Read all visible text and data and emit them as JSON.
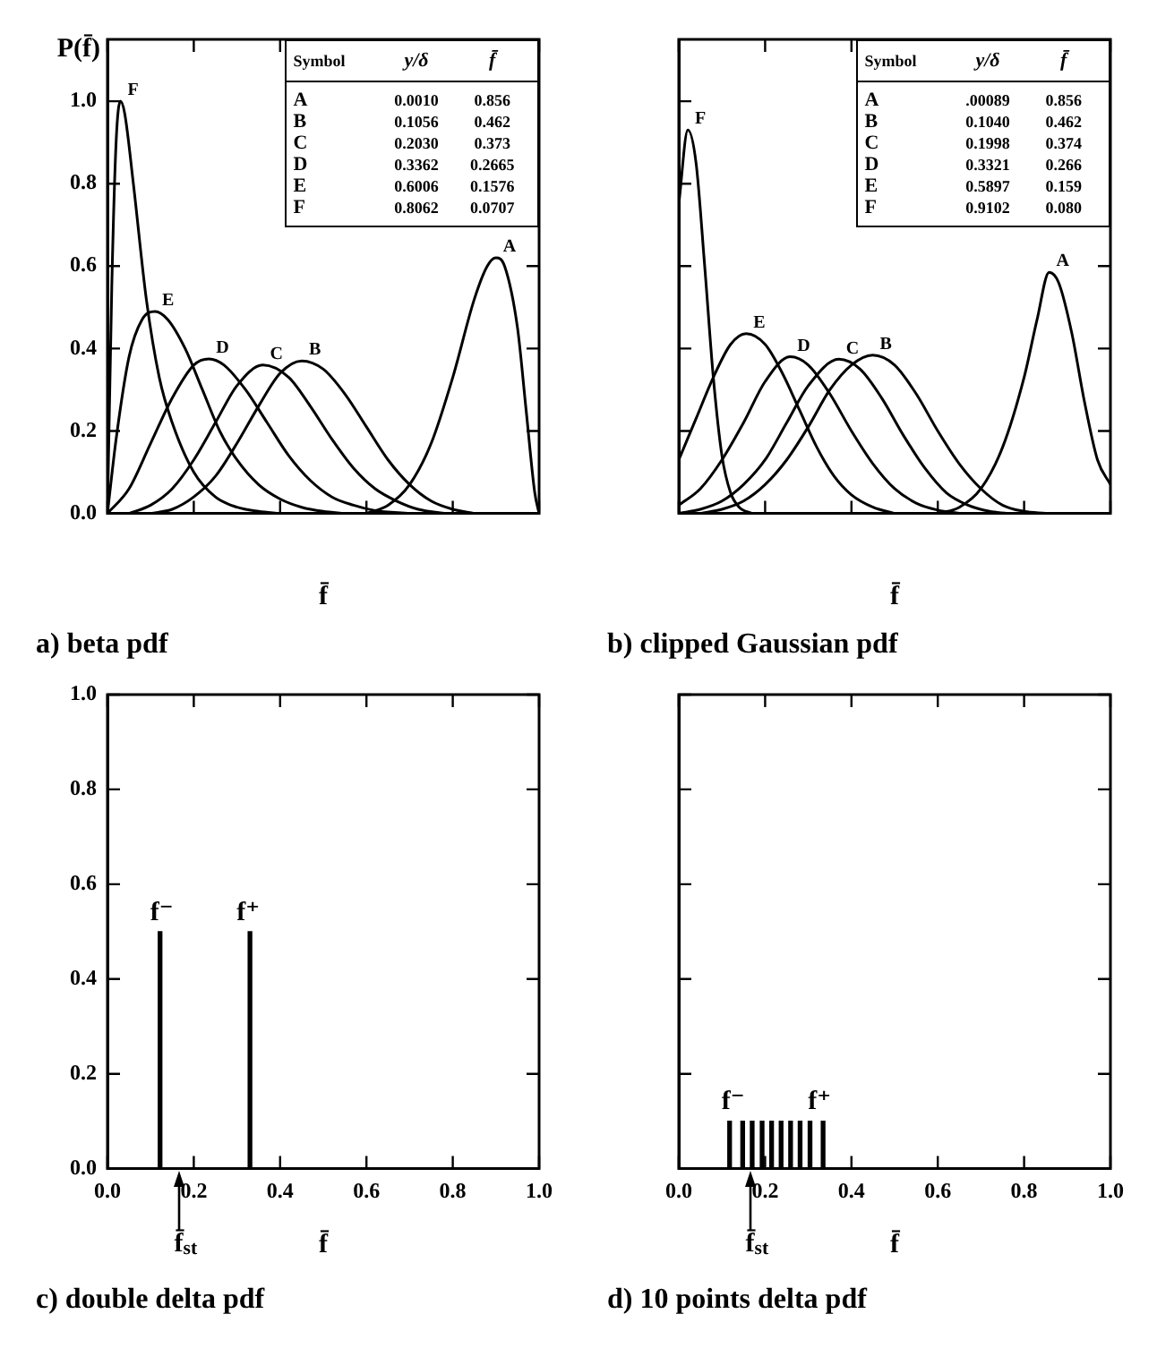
{
  "chart_data": [
    {
      "type": "line",
      "title": "a) beta pdf",
      "xlabel": "f̄",
      "ylabel": "P(f̄)",
      "xlim": [
        0,
        1
      ],
      "ylim": [
        0,
        1.15
      ],
      "tick_labels": "y",
      "xticks": [
        {
          "value": 0,
          "label": null
        },
        {
          "value": 0.2,
          "label": null
        },
        {
          "value": 0.4,
          "label": null
        },
        {
          "value": 0.6,
          "label": null
        },
        {
          "value": 0.8,
          "label": null
        },
        {
          "value": 1,
          "label": null
        }
      ],
      "yticks": [
        {
          "value": 0,
          "label": "0.0"
        },
        {
          "value": 0.2,
          "label": "0.2"
        },
        {
          "value": 0.4,
          "label": "0.4"
        },
        {
          "value": 0.6,
          "label": "0.6"
        },
        {
          "value": 0.8,
          "label": "0.8"
        },
        {
          "value": 1,
          "label": "1.0"
        }
      ],
      "annotations": [
        "Symbol",
        "y/δ",
        "f̄",
        "A",
        "0.0010",
        "0.856",
        "B",
        "0.1056",
        "0.462",
        "C",
        "0.2030",
        "0.373",
        "D",
        "0.3362",
        "0.2665",
        "E",
        "0.6006",
        "0.1576",
        "F",
        "0.8062",
        "0.0707"
      ],
      "series": [
        {
          "name": "A",
          "color": "#000000",
          "x": [
            0.6,
            0.65,
            0.7,
            0.75,
            0.8,
            0.85,
            0.88,
            0.9,
            0.92,
            0.95,
            0.97,
            0.99,
            1.0
          ],
          "values": [
            0,
            0.02,
            0.07,
            0.17,
            0.33,
            0.52,
            0.6,
            0.62,
            0.6,
            0.45,
            0.25,
            0.05,
            0
          ]
        },
        {
          "name": "B",
          "color": "#000000",
          "x": [
            0.1,
            0.15,
            0.2,
            0.25,
            0.3,
            0.35,
            0.4,
            0.45,
            0.5,
            0.55,
            0.6,
            0.65,
            0.7,
            0.75,
            0.8,
            0.85
          ],
          "values": [
            0,
            0.01,
            0.04,
            0.09,
            0.17,
            0.26,
            0.34,
            0.37,
            0.35,
            0.29,
            0.21,
            0.13,
            0.07,
            0.03,
            0.01,
            0
          ]
        },
        {
          "name": "C",
          "color": "#000000",
          "x": [
            0.05,
            0.1,
            0.15,
            0.2,
            0.25,
            0.3,
            0.36,
            0.42,
            0.47,
            0.52,
            0.57,
            0.62,
            0.67,
            0.72,
            0.78
          ],
          "values": [
            0,
            0.02,
            0.06,
            0.13,
            0.22,
            0.31,
            0.36,
            0.33,
            0.26,
            0.18,
            0.11,
            0.06,
            0.03,
            0.01,
            0
          ]
        },
        {
          "name": "D",
          "color": "#000000",
          "x": [
            0,
            0.05,
            0.1,
            0.15,
            0.2,
            0.235,
            0.27,
            0.32,
            0.37,
            0.42,
            0.47,
            0.52,
            0.57,
            0.62,
            0.7
          ],
          "values": [
            0,
            0.06,
            0.17,
            0.28,
            0.36,
            0.375,
            0.36,
            0.3,
            0.22,
            0.14,
            0.08,
            0.04,
            0.02,
            0.007,
            0
          ]
        },
        {
          "name": "E",
          "color": "#000000",
          "x": [
            0,
            0.02,
            0.05,
            0.08,
            0.11,
            0.14,
            0.18,
            0.22,
            0.26,
            0.3,
            0.35,
            0.4,
            0.45,
            0.5,
            0.55
          ],
          "values": [
            0,
            0.18,
            0.38,
            0.47,
            0.49,
            0.47,
            0.4,
            0.3,
            0.2,
            0.13,
            0.07,
            0.035,
            0.015,
            0.005,
            0
          ]
        },
        {
          "name": "F",
          "color": "#000000",
          "x": [
            0,
            0.01,
            0.02,
            0.03,
            0.04,
            0.06,
            0.09,
            0.12,
            0.15,
            0.2,
            0.25,
            0.3,
            0.35,
            0.4
          ],
          "values": [
            0,
            0.55,
            0.9,
            1.0,
            0.97,
            0.8,
            0.52,
            0.33,
            0.22,
            0.1,
            0.04,
            0.015,
            0.005,
            0
          ]
        }
      ]
    },
    {
      "type": "line",
      "title": "b) clipped Gaussian pdf",
      "xlabel": "f̄",
      "xlim": [
        0,
        1
      ],
      "ylim": [
        0,
        1.15
      ],
      "tick_labels": false,
      "xticks": [
        {
          "value": 0,
          "label": null
        },
        {
          "value": 0.2,
          "label": null
        },
        {
          "value": 0.4,
          "label": null
        },
        {
          "value": 0.6,
          "label": null
        },
        {
          "value": 0.8,
          "label": null
        },
        {
          "value": 1,
          "label": null
        }
      ],
      "yticks": [
        {
          "value": 0,
          "label": null
        },
        {
          "value": 0.2,
          "label": null
        },
        {
          "value": 0.4,
          "label": null
        },
        {
          "value": 0.6,
          "label": null
        },
        {
          "value": 0.8,
          "label": null
        },
        {
          "value": 1,
          "label": null
        }
      ],
      "annotations": [
        "Symbol",
        "y/δ",
        "f̄",
        "A",
        ".00089",
        "0.856",
        "B",
        "0.1040",
        "0.462",
        "C",
        "0.1998",
        "0.374",
        "D",
        "0.3321",
        "0.266",
        "E",
        "0.5897",
        "0.159",
        "F",
        "0.9102",
        "0.080"
      ],
      "series": [
        {
          "name": "A",
          "color": "#000000",
          "x": [
            0.6,
            0.65,
            0.7,
            0.75,
            0.8,
            0.83,
            0.858,
            0.88,
            0.91,
            0.94,
            0.97,
            1.0
          ],
          "values": [
            0,
            0.015,
            0.06,
            0.16,
            0.33,
            0.47,
            0.585,
            0.56,
            0.44,
            0.27,
            0.13,
            0.07
          ]
        },
        {
          "name": "B",
          "color": "#000000",
          "x": [
            0.05,
            0.1,
            0.15,
            0.2,
            0.25,
            0.3,
            0.35,
            0.4,
            0.449,
            0.5,
            0.55,
            0.6,
            0.65,
            0.7,
            0.75,
            0.8,
            0.85
          ],
          "values": [
            0,
            0.01,
            0.03,
            0.07,
            0.13,
            0.21,
            0.3,
            0.36,
            0.384,
            0.36,
            0.29,
            0.2,
            0.12,
            0.06,
            0.02,
            0.005,
            0
          ]
        },
        {
          "name": "C",
          "color": "#000000",
          "x": [
            0,
            0.05,
            0.1,
            0.15,
            0.2,
            0.25,
            0.3,
            0.371,
            0.42,
            0.47,
            0.52,
            0.57,
            0.62,
            0.67,
            0.72,
            0.76
          ],
          "values": [
            0,
            0.01,
            0.03,
            0.07,
            0.13,
            0.22,
            0.31,
            0.374,
            0.35,
            0.28,
            0.19,
            0.11,
            0.05,
            0.02,
            0.005,
            0
          ]
        },
        {
          "name": "D",
          "color": "#000000",
          "x": [
            0,
            0.05,
            0.1,
            0.15,
            0.2,
            0.258,
            0.3,
            0.35,
            0.4,
            0.45,
            0.5,
            0.55,
            0.6,
            0.65
          ],
          "values": [
            0.02,
            0.06,
            0.13,
            0.22,
            0.32,
            0.38,
            0.36,
            0.29,
            0.2,
            0.12,
            0.06,
            0.025,
            0.008,
            0
          ]
        },
        {
          "name": "E",
          "color": "#000000",
          "x": [
            0,
            0.04,
            0.08,
            0.12,
            0.156,
            0.2,
            0.24,
            0.28,
            0.32,
            0.36,
            0.4,
            0.45,
            0.5
          ],
          "values": [
            0.13,
            0.23,
            0.33,
            0.41,
            0.436,
            0.41,
            0.34,
            0.25,
            0.16,
            0.09,
            0.045,
            0.015,
            0
          ]
        },
        {
          "name": "F",
          "color": "#000000",
          "x": [
            0,
            0.021,
            0.04,
            0.06,
            0.08,
            0.1,
            0.12,
            0.14,
            0.17
          ],
          "values": [
            0.75,
            0.93,
            0.85,
            0.6,
            0.33,
            0.14,
            0.05,
            0.015,
            0
          ]
        }
      ]
    },
    {
      "type": "bar",
      "title": "c) double delta pdf",
      "xlabel": "f̄",
      "xlim": [
        0,
        1
      ],
      "ylim": [
        0,
        1
      ],
      "xticks": [
        {
          "value": 0,
          "label": "0.0"
        },
        {
          "value": 0.2,
          "label": "0.2"
        },
        {
          "value": 0.4,
          "label": "0.4"
        },
        {
          "value": 0.6,
          "label": "0.6"
        },
        {
          "value": 0.8,
          "label": "0.8"
        },
        {
          "value": 1,
          "label": "1.0"
        }
      ],
      "yticks": [
        {
          "value": 0,
          "label": "0.0"
        },
        {
          "value": 0.2,
          "label": "0.2"
        },
        {
          "value": 0.4,
          "label": "0.4"
        },
        {
          "value": 0.6,
          "label": "0.6"
        },
        {
          "value": 0.8,
          "label": "0.8"
        },
        {
          "value": 1,
          "label": "1.0"
        }
      ],
      "ref_lines": [
        {
          "axis": "x",
          "value": 0.167,
          "label": "f̄$_{st}$"
        }
      ],
      "series": [
        {
          "name": "f⁻",
          "color": "#000000",
          "x": [
            0.126
          ],
          "values": [
            0.5
          ]
        },
        {
          "name": "f⁺",
          "color": "#000000",
          "x": [
            0.326
          ],
          "values": [
            0.5
          ]
        }
      ]
    },
    {
      "type": "bar",
      "title": "d) 10 points delta pdf",
      "xlabel": "f̄",
      "xlim": [
        0,
        1
      ],
      "ylim": [
        0,
        1
      ],
      "tick_labels": "x",
      "xticks": [
        {
          "value": 0,
          "label": "0.0"
        },
        {
          "value": 0.2,
          "label": "0.2"
        },
        {
          "value": 0.4,
          "label": "0.4"
        },
        {
          "value": 0.6,
          "label": "0.6"
        },
        {
          "value": 0.8,
          "label": "0.8"
        },
        {
          "value": 1,
          "label": "1.0"
        }
      ],
      "yticks": [
        {
          "value": 0,
          "label": null
        },
        {
          "value": 0.2,
          "label": null
        },
        {
          "value": 0.4,
          "label": null
        },
        {
          "value": 0.6,
          "label": null
        },
        {
          "value": 0.8,
          "label": null
        },
        {
          "value": 1,
          "label": null
        }
      ],
      "ref_lines": [
        {
          "axis": "x",
          "value": 0.167,
          "label": "f̄$_{st}$"
        }
      ],
      "series": [
        {
          "name": "f⁻",
          "color": "#000000",
          "x": [
            0.126
          ],
          "values": [
            0.1
          ]
        },
        {
          "color": "#000000",
          "x": [
            0.148,
            0.17,
            0.193,
            0.215,
            0.237,
            0.259,
            0.281,
            0.304
          ],
          "values": [
            0.1,
            0.1,
            0.1,
            0.1,
            0.1,
            0.1,
            0.1,
            0.1
          ]
        },
        {
          "name": "f⁺",
          "color": "#000000",
          "x": [
            0.326
          ],
          "values": [
            0.1
          ]
        }
      ]
    }
  ]
}
